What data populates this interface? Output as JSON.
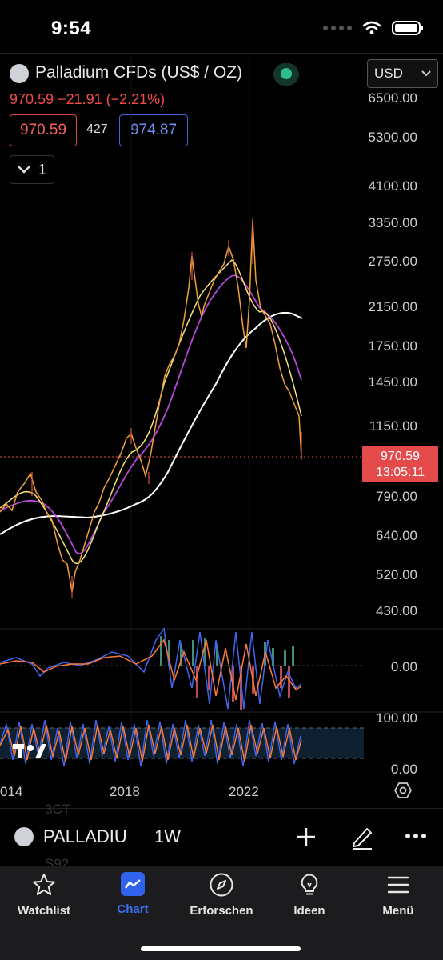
{
  "status_bar": {
    "time": "9:54"
  },
  "header": {
    "title": "Palladium CFDs (US$ / OZ)",
    "price_line": "970.59  −21.91 (−2.21%)",
    "bid": "970.59",
    "spread": "427",
    "ask": "974.87",
    "collapse_count": "1",
    "currency": "USD"
  },
  "price_axis": {
    "labels": [
      "6500.00",
      "5300.00",
      "4100.00",
      "3350.00",
      "2750.00",
      "2150.00",
      "1750.00",
      "1450.00",
      "1150.00",
      "790.00",
      "640.00",
      "520.00",
      "430.00"
    ],
    "scale": "log",
    "current_price": "970.59",
    "countdown": "13:05:11"
  },
  "macd_axis": {
    "labels": [
      "0.00"
    ]
  },
  "stoch_axis": {
    "labels": [
      "100.00",
      "0.00"
    ]
  },
  "time_axis": {
    "labels": [
      "014",
      "2018",
      "2022"
    ]
  },
  "chart_data": {
    "type": "line",
    "title": "Palladium CFDs (US$ / OZ)",
    "interval": "1W",
    "x": [
      2013.0,
      2014.0,
      2014.6,
      2015.5,
      2016.0,
      2016.5,
      2017.0,
      2017.7,
      2018.0,
      2018.6,
      2019.0,
      2019.6,
      2020.0,
      2020.2,
      2020.5,
      2021.0,
      2021.3,
      2021.8,
      2022.2,
      2022.5,
      2023.0,
      2023.3
    ],
    "series": [
      {
        "name": "",
        "values": [
          720,
          760,
          900,
          600,
          480,
          620,
          760,
          1000,
          1040,
          880,
          1350,
          1600,
          2500,
          1800,
          1950,
          2350,
          2800,
          1900,
          2500,
          1950,
          1600,
          970
        ]
      }
    ],
    "ylim": [
      400,
      7000
    ],
    "colors": {
      "price": "#f0a03a",
      "ma_fast": "#f7e37a",
      "ma_mid": "#b44ad6",
      "ma_slow": "#ffffff",
      "macd": "#3f66f0",
      "signal": "#ff7a33"
    }
  },
  "symbol_bar": {
    "ghost_top": "3CT",
    "ghost_bottom": "S92",
    "symbol": "PALLADIU",
    "interval": "1W"
  },
  "tabs": [
    {
      "label": "Watchlist",
      "icon": "star-icon"
    },
    {
      "label": "Chart",
      "icon": "chart-icon"
    },
    {
      "label": "Erforschen",
      "icon": "compass-icon"
    },
    {
      "label": "Ideen",
      "icon": "lightbulb-icon"
    },
    {
      "label": "Menü",
      "icon": "menu-icon"
    }
  ]
}
